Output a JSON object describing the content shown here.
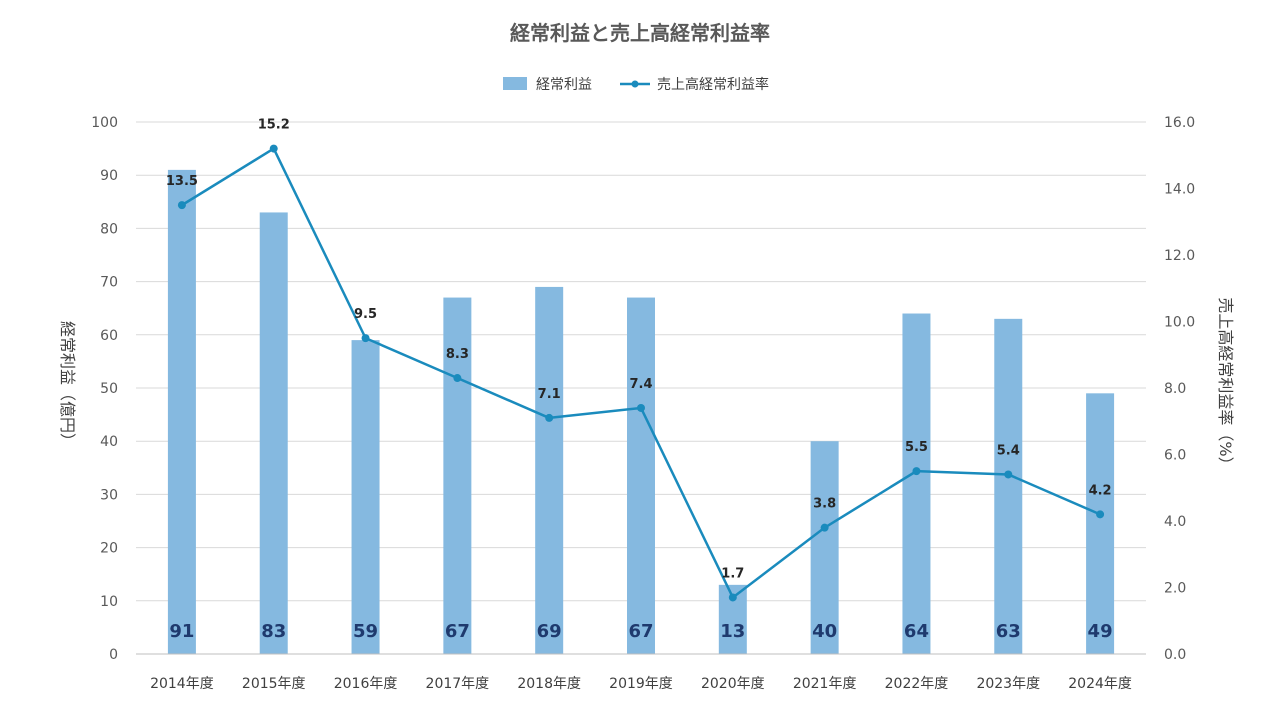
{
  "chart_data": {
    "type": "bar+line",
    "title": "経常利益と売上高経常利益率",
    "categories": [
      "2014年度",
      "2015年度",
      "2016年度",
      "2017年度",
      "2018年度",
      "2019年度",
      "2020年度",
      "2021年度",
      "2022年度",
      "2023年度",
      "2024年度"
    ],
    "series": [
      {
        "name": "経常利益",
        "type": "bar",
        "axis": "left",
        "values": [
          91,
          83,
          59,
          67,
          69,
          67,
          13,
          40,
          64,
          63,
          49
        ]
      },
      {
        "name": "売上高経常利益率",
        "type": "line",
        "axis": "right",
        "values": [
          13.5,
          15.2,
          9.5,
          8.3,
          7.1,
          7.4,
          1.7,
          3.8,
          5.5,
          5.4,
          4.2
        ]
      }
    ],
    "ylabel_left": "経常利益（億円）",
    "ylabel_right": "売上高経常利益率（%）",
    "ylim_left": [
      0,
      100
    ],
    "ylim_right": [
      0,
      16
    ],
    "yticks_left": [
      0,
      10,
      20,
      30,
      40,
      50,
      60,
      70,
      80,
      90,
      100
    ],
    "yticks_right": [
      "0.0",
      "2.0",
      "4.0",
      "6.0",
      "8.0",
      "10.0",
      "12.0",
      "14.0",
      "16.0"
    ],
    "legend_position": "top",
    "grid": true,
    "colors": {
      "bar": "#85b9e0",
      "line": "#1a8bbd",
      "bar_label": "#1f3a6e"
    }
  }
}
